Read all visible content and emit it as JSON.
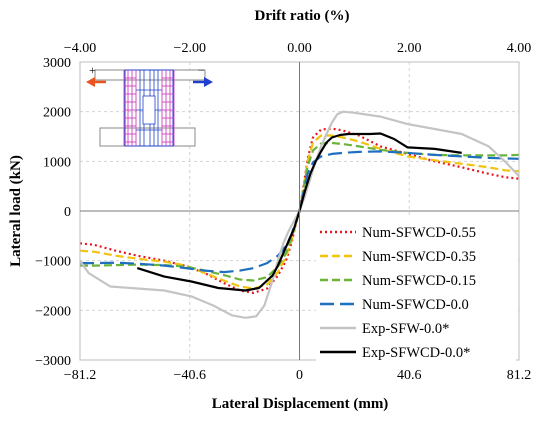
{
  "chart_data": {
    "type": "line",
    "xlabel": "Lateral Displacement (mm)",
    "ylabel": "Lateral load (kN)",
    "x2label": "Drift ratio (%)",
    "xlim": [
      -81.2,
      81.2
    ],
    "ylim": [
      -3000,
      3000
    ],
    "x_ticks": [
      -81.2,
      -40.6,
      0,
      40.6,
      81.2
    ],
    "x_tick_labels": [
      "−81.2",
      "−40.6",
      "0",
      "40.6",
      "81.2"
    ],
    "y_ticks": [
      -3000,
      -2000,
      -1000,
      0,
      1000,
      2000,
      3000
    ],
    "y_tick_labels": [
      "−3000",
      "−2000",
      "−1000",
      "0",
      "1000",
      "2000",
      "3000"
    ],
    "x2_ticks": [
      -4,
      -2,
      0,
      2,
      4
    ],
    "x2_tick_labels": [
      "−4.00",
      "−2.00",
      "0.00",
      "2.00",
      "4.00"
    ],
    "grid": true,
    "legend_position": "bottom-right",
    "inset": {
      "plus_sign": "+",
      "minus_sign": "−",
      "left_arrow_color": "#e8541e",
      "right_arrow_color": "#1f3fd1"
    },
    "series": [
      {
        "name": "Num-SFWCD-0.55",
        "color": "#e8141e",
        "dash": "2,3",
        "x": [
          -81.2,
          -76,
          -68,
          -60,
          -50,
          -42,
          -35,
          -28,
          -22,
          -17,
          -12,
          -8,
          -5,
          -3,
          -1.5,
          0,
          1.5,
          3,
          5,
          8,
          12,
          16,
          22,
          30,
          40,
          50,
          60,
          70,
          76,
          81.2
        ],
        "y": [
          -650,
          -680,
          -800,
          -900,
          -1000,
          -1110,
          -1250,
          -1450,
          -1600,
          -1650,
          -1560,
          -1300,
          -1000,
          -650,
          -300,
          0,
          500,
          1050,
          1480,
          1640,
          1660,
          1620,
          1520,
          1300,
          1150,
          1000,
          880,
          750,
          680,
          650
        ]
      },
      {
        "name": "Num-SFWCD-0.35",
        "color": "#f2c30f",
        "dash": "8,4",
        "x": [
          -81.2,
          -76,
          -68,
          -60,
          -50,
          -42,
          -35,
          -28,
          -22,
          -17,
          -12,
          -8,
          -5,
          -3,
          -1.5,
          0,
          1.5,
          3,
          5,
          8,
          12,
          16,
          22,
          30,
          40,
          50,
          60,
          70,
          76,
          81.2
        ],
        "y": [
          -800,
          -820,
          -900,
          -960,
          -1020,
          -1100,
          -1250,
          -1400,
          -1520,
          -1560,
          -1480,
          -1230,
          -920,
          -600,
          -280,
          0,
          480,
          1000,
          1380,
          1520,
          1520,
          1480,
          1400,
          1250,
          1100,
          1020,
          950,
          880,
          820,
          800
        ]
      },
      {
        "name": "Num-SFWCD-0.15",
        "color": "#6ab43a",
        "dash": "8,4",
        "x": [
          -81.2,
          -76,
          -68,
          -60,
          -50,
          -42,
          -35,
          -28,
          -22,
          -17,
          -12,
          -8,
          -5,
          -3,
          -1.5,
          0,
          1.5,
          3,
          5,
          8,
          12,
          16,
          22,
          30,
          40,
          50,
          60,
          70,
          76,
          81.2
        ],
        "y": [
          -1100,
          -1100,
          -1090,
          -1080,
          -1090,
          -1120,
          -1200,
          -1290,
          -1380,
          -1400,
          -1330,
          -1120,
          -850,
          -560,
          -260,
          0,
          450,
          900,
          1220,
          1360,
          1370,
          1350,
          1300,
          1230,
          1170,
          1130,
          1120,
          1120,
          1120,
          1130
        ]
      },
      {
        "name": "Num-SFWCD-0.0",
        "color": "#1f6fc0",
        "dash": "14,6",
        "x": [
          -81.2,
          -76,
          -68,
          -60,
          -50,
          -42,
          -35,
          -28,
          -22,
          -17,
          -12,
          -8,
          -5,
          -3,
          -1.5,
          0,
          1.5,
          3,
          5,
          8,
          12,
          16,
          22,
          30,
          40,
          50,
          60,
          70,
          76,
          81.2
        ],
        "y": [
          -1050,
          -1050,
          -1040,
          -1060,
          -1100,
          -1150,
          -1200,
          -1230,
          -1200,
          -1150,
          -1050,
          -900,
          -700,
          -480,
          -230,
          0,
          380,
          750,
          980,
          1100,
          1150,
          1170,
          1190,
          1200,
          1170,
          1130,
          1100,
          1070,
          1060,
          1050
        ]
      },
      {
        "name": "Exp-SFW-0.0*",
        "color": "#c4c4c4",
        "dash": "",
        "x": [
          -81.2,
          -78,
          -70,
          -60,
          -50,
          -40,
          -32,
          -25,
          -20,
          -16,
          -13,
          -10,
          -8,
          -6,
          -4,
          -2,
          0,
          2,
          4,
          6,
          8,
          10,
          12,
          14,
          16,
          20,
          30,
          40,
          50,
          60,
          70,
          76,
          81.2
        ],
        "y": [
          -1000,
          -1250,
          -1520,
          -1560,
          -1600,
          -1720,
          -1900,
          -2100,
          -2150,
          -2120,
          -1900,
          -1400,
          -1000,
          -650,
          -400,
          -200,
          0,
          300,
          650,
          1000,
          1300,
          1550,
          1780,
          1950,
          2000,
          1980,
          1900,
          1750,
          1650,
          1550,
          1300,
          1000,
          700
        ]
      },
      {
        "name": "Exp-SFWCD-0.0*",
        "color": "#000000",
        "dash": "",
        "x": [
          -60,
          -50,
          -40,
          -30,
          -20,
          -15,
          -10,
          -8,
          -6,
          -4,
          -2,
          0,
          2,
          4,
          6,
          8,
          10,
          12,
          15,
          18,
          22,
          26,
          30,
          35,
          40,
          50,
          60
        ],
        "y": [
          -1150,
          -1320,
          -1420,
          -1550,
          -1600,
          -1550,
          -1300,
          -1100,
          -850,
          -600,
          -350,
          0,
          400,
          750,
          1000,
          1200,
          1380,
          1480,
          1530,
          1550,
          1550,
          1550,
          1560,
          1450,
          1280,
          1250,
          1170
        ]
      }
    ]
  }
}
